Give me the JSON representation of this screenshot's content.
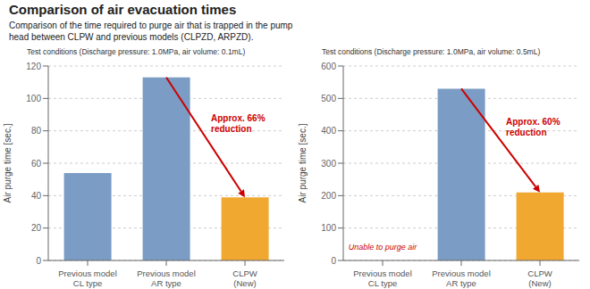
{
  "title": "Comparison of air evacuation times",
  "subtitle": "Comparison of the time required to purge air that is trapped in the pump\nhead between CLPW and previous models (CLPZD, ARPZD).",
  "chart_data": [
    {
      "type": "bar",
      "title": "Test conditions (Discharge pressure: 1.0MPa, air volume: 0.1mL)",
      "ylabel": "Air purge time [sec.]",
      "categories": [
        "Previous model\nCL type",
        "Previous model\nAR type",
        "CLPW\n(New)"
      ],
      "values": [
        54,
        113,
        39
      ],
      "colors": [
        "#7b9cc4",
        "#7b9cc4",
        "#f0a830"
      ],
      "ylim": [
        0,
        120
      ],
      "yticks": [
        0,
        20,
        40,
        60,
        80,
        100,
        120
      ],
      "grid": true,
      "annotations": [
        {
          "text": "Approx. 66%\nreduction",
          "arrow_from": "Previous model\nAR type",
          "arrow_to": "CLPW\n(New)",
          "color": "#cc0000"
        }
      ]
    },
    {
      "type": "bar",
      "title": "Test conditions (Discharge pressure: 1.0MPa, air volume: 0.5mL)",
      "ylabel": "Air purge time [sec.]",
      "categories": [
        "Previous model\nCL type",
        "Previous model\nAR type",
        "CLPW\n(New)"
      ],
      "values": [
        0,
        530,
        210
      ],
      "colors": [
        "#7b9cc4",
        "#7b9cc4",
        "#f0a830"
      ],
      "ylim": [
        0,
        600
      ],
      "yticks": [
        0,
        100,
        200,
        300,
        400,
        500,
        600
      ],
      "grid": true,
      "annotations": [
        {
          "text": "Approx. 60%\nreduction",
          "arrow_from": "Previous model\nAR type",
          "arrow_to": "CLPW\n(New)",
          "color": "#cc0000"
        },
        {
          "text": "Unable to purge air",
          "category": "Previous model\nCL type",
          "color": "#cc0000"
        }
      ]
    }
  ]
}
